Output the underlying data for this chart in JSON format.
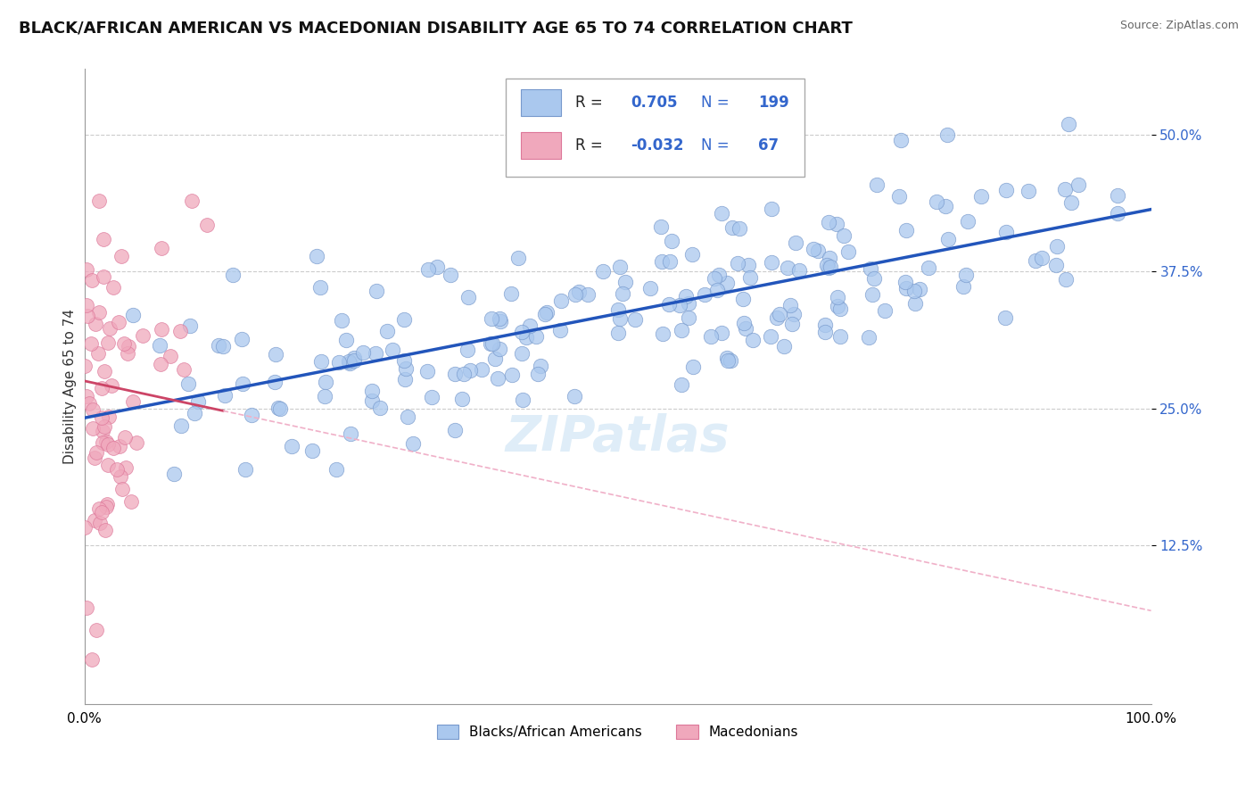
{
  "title": "BLACK/AFRICAN AMERICAN VS MACEDONIAN DISABILITY AGE 65 TO 74 CORRELATION CHART",
  "source": "Source: ZipAtlas.com",
  "ylabel": "Disability Age 65 to 74",
  "xlim": [
    0.0,
    1.0
  ],
  "ylim": [
    -0.02,
    0.56
  ],
  "yticks": [
    0.125,
    0.25,
    0.375,
    0.5
  ],
  "ytick_labels": [
    "12.5%",
    "25.0%",
    "37.5%",
    "50.0%"
  ],
  "xticks": [
    0.0,
    1.0
  ],
  "xtick_labels": [
    "0.0%",
    "100.0%"
  ],
  "blue_R": 0.705,
  "blue_N": 199,
  "pink_R": -0.032,
  "pink_N": 67,
  "blue_scatter_color": "#aac8ee",
  "pink_scatter_color": "#f0a8bc",
  "blue_line_color": "#2255bb",
  "pink_line_solid_color": "#cc4466",
  "pink_line_dash_color": "#f0b0c8",
  "blue_marker_edge": "#7799cc",
  "pink_marker_edge": "#dd7799",
  "watermark": "ZIPatlas",
  "background_color": "#ffffff",
  "grid_color": "#cccccc",
  "legend_box_blue": "#aac8ee",
  "legend_box_pink": "#f0a8bc",
  "legend_label_blue": "Blacks/African Americans",
  "legend_label_pink": "Macedonians",
  "title_fontsize": 13,
  "axis_label_fontsize": 11,
  "tick_label_fontsize": 11,
  "legend_fontsize": 12,
  "tick_color": "#3366cc",
  "seed_blue": 42,
  "seed_pink": 7
}
